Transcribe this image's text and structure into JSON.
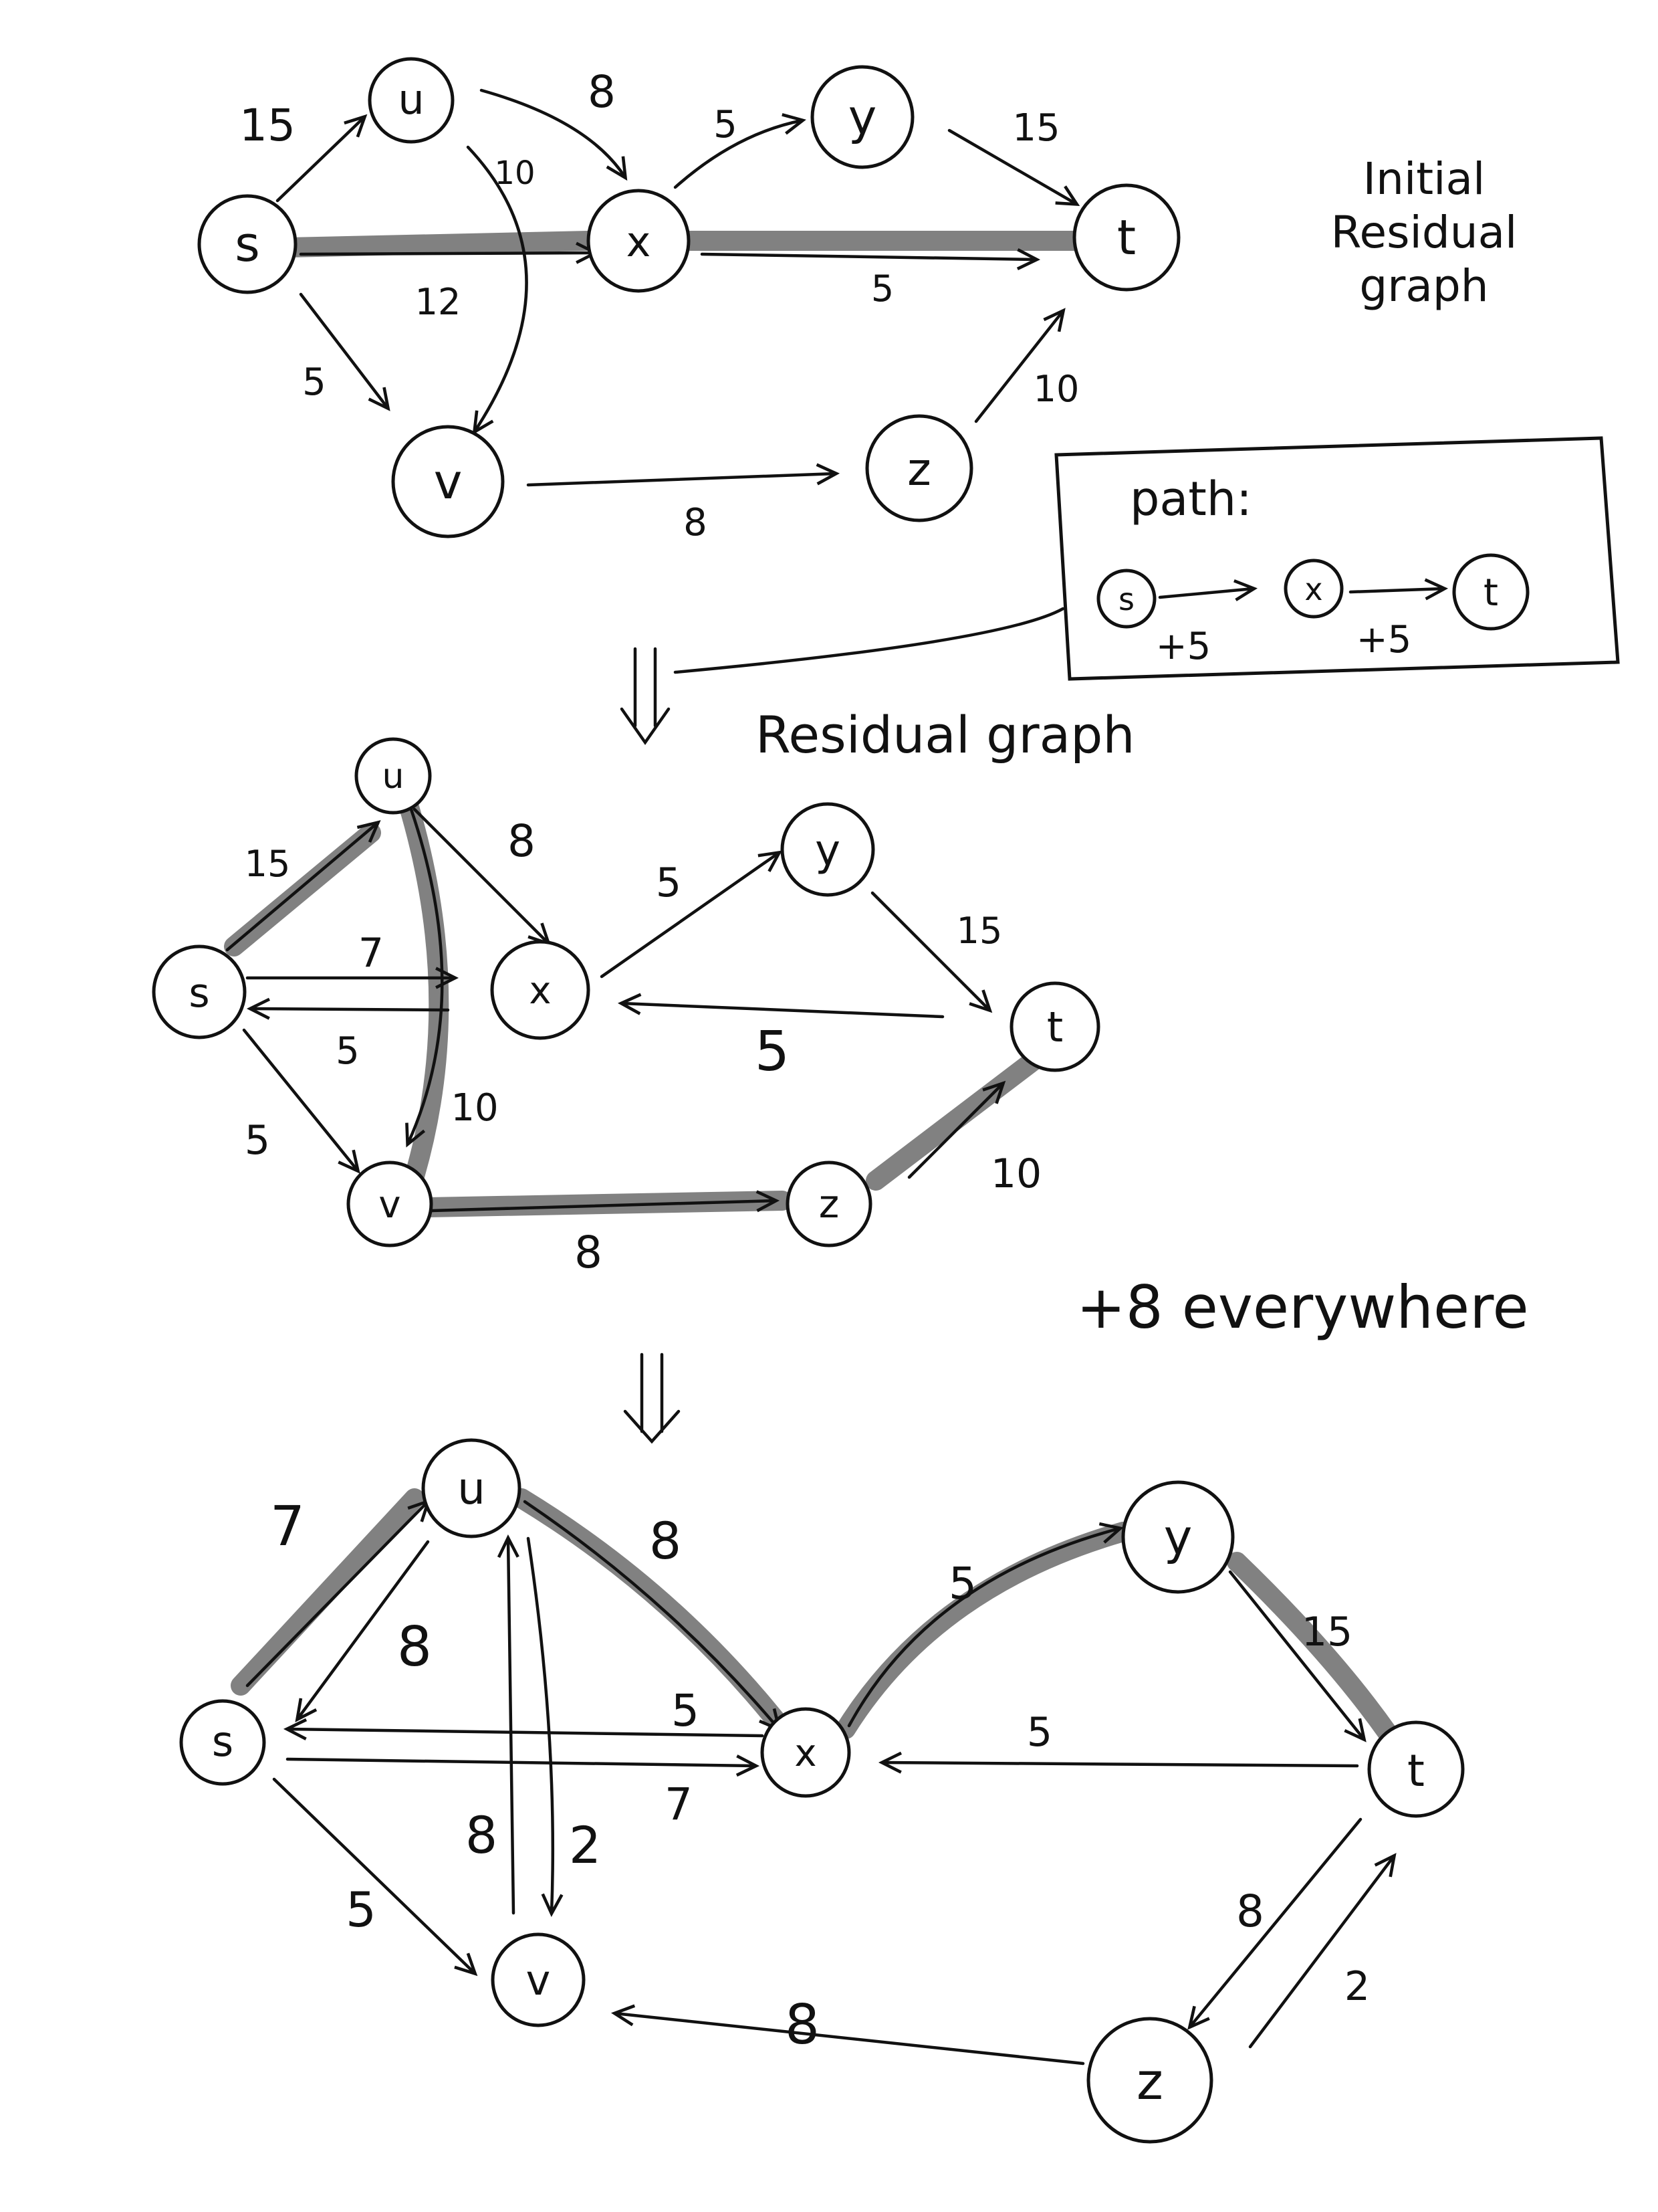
{
  "notes": {
    "initial": [
      "Initial",
      "Residual",
      "graph"
    ],
    "residual": "Residual graph",
    "plus_eight": "+8 everywhere"
  },
  "path_box": {
    "title": "path:",
    "nodes": [
      "s",
      "x",
      "t"
    ],
    "increments": [
      "+5",
      "+5"
    ]
  },
  "graphs": [
    {
      "id": "initial",
      "nodes": [
        "s",
        "u",
        "x",
        "y",
        "t",
        "v",
        "z"
      ],
      "edges": [
        {
          "from": "s",
          "to": "u",
          "label": "15"
        },
        {
          "from": "u",
          "to": "x",
          "label": "8"
        },
        {
          "from": "u",
          "to": "v",
          "label": "10"
        },
        {
          "from": "s",
          "to": "x",
          "label": "12"
        },
        {
          "from": "x",
          "to": "y",
          "label": "5"
        },
        {
          "from": "y",
          "to": "t",
          "label": "15"
        },
        {
          "from": "x",
          "to": "t",
          "label": "5"
        },
        {
          "from": "s",
          "to": "v",
          "label": "5"
        },
        {
          "from": "v",
          "to": "z",
          "label": "8"
        },
        {
          "from": "z",
          "to": "t",
          "label": "10"
        }
      ]
    },
    {
      "id": "residual",
      "nodes": [
        "u",
        "y",
        "s",
        "x",
        "t",
        "v",
        "z"
      ],
      "edges": [
        {
          "from": "s",
          "to": "u",
          "label": "15"
        },
        {
          "from": "u",
          "to": "x",
          "label": "8"
        },
        {
          "from": "x",
          "to": "y",
          "label": "5"
        },
        {
          "from": "y",
          "to": "t",
          "label": "15"
        },
        {
          "from": "s",
          "to": "x",
          "label": "7"
        },
        {
          "from": "x",
          "to": "s",
          "label": "5"
        },
        {
          "from": "t",
          "to": "x",
          "label": "5"
        },
        {
          "from": "u",
          "to": "v",
          "label": "10"
        },
        {
          "from": "s",
          "to": "v",
          "label": "5"
        },
        {
          "from": "v",
          "to": "z",
          "label": "8"
        },
        {
          "from": "z",
          "to": "t",
          "label": "10"
        }
      ]
    },
    {
      "id": "final",
      "nodes": [
        "u",
        "y",
        "s",
        "x",
        "t",
        "v",
        "z"
      ],
      "edges": [
        {
          "from": "s",
          "to": "u",
          "label": "7"
        },
        {
          "from": "u",
          "to": "s",
          "label": "8"
        },
        {
          "from": "u",
          "to": "x",
          "label": "8"
        },
        {
          "from": "x",
          "to": "y",
          "label": "5"
        },
        {
          "from": "y",
          "to": "t",
          "label": "15"
        },
        {
          "from": "x",
          "to": "s",
          "label": "5"
        },
        {
          "from": "s",
          "to": "x",
          "label": "7"
        },
        {
          "from": "t",
          "to": "x",
          "label": "5"
        },
        {
          "from": "v",
          "to": "u",
          "label": "8"
        },
        {
          "from": "u",
          "to": "v",
          "label": "2"
        },
        {
          "from": "s",
          "to": "v",
          "label": "5"
        },
        {
          "from": "z",
          "to": "v",
          "label": "8"
        },
        {
          "from": "t",
          "to": "z",
          "label": "8"
        },
        {
          "from": "z",
          "to": "t",
          "label": "2"
        }
      ]
    }
  ]
}
